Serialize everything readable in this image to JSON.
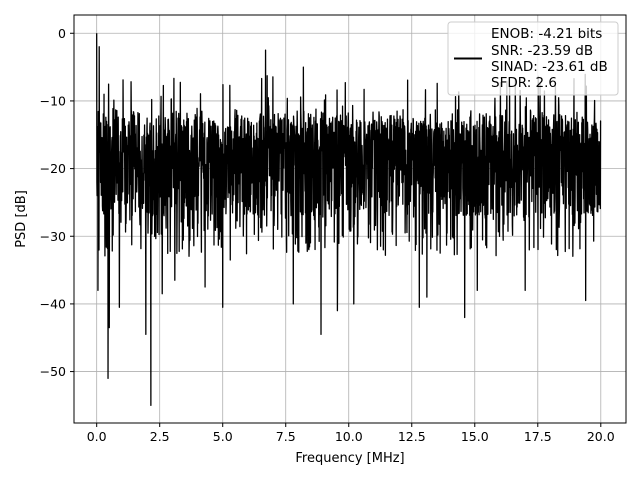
{
  "chart_data": {
    "type": "line",
    "title": "",
    "xlabel": "Frequency [MHz]",
    "ylabel": "PSD [dB]",
    "xlim": [
      -0.9,
      21.0
    ],
    "ylim": [
      -57.6,
      2.7
    ],
    "xticks": [
      0.0,
      2.5,
      5.0,
      7.5,
      10.0,
      12.5,
      15.0,
      17.5,
      20.0
    ],
    "xtick_labels": [
      "0.0",
      "2.5",
      "5.0",
      "7.5",
      "10.0",
      "12.5",
      "15.0",
      "17.5",
      "20.0"
    ],
    "yticks": [
      0,
      -10,
      -20,
      -30,
      -40,
      -50
    ],
    "ytick_labels": [
      "0",
      "−10",
      "−20",
      "−30",
      "−40",
      "−50"
    ],
    "grid": true,
    "legend_position": "top-right",
    "line_color": "#000000",
    "legend": {
      "lines": [
        "ENOB: -4.21 bits",
        "SNR: -23.59 dB",
        "SINAD: -23.61 dB",
        "SFDR: 2.6"
      ]
    },
    "series": [
      {
        "band": {
          "x_start": 0.0,
          "x_end": 20.0,
          "upper": -12,
          "lower": -27,
          "mid": -19
        },
        "features": [
          {
            "x": 0.0,
            "y": 0
          },
          {
            "x": 0.05,
            "y": -38
          },
          {
            "x": 0.1,
            "y": -2
          },
          {
            "x": 0.45,
            "y": -51
          },
          {
            "x": 0.5,
            "y": -43.5
          },
          {
            "x": 0.9,
            "y": -40.5
          },
          {
            "x": 1.95,
            "y": -44.5
          },
          {
            "x": 2.15,
            "y": -55
          },
          {
            "x": 2.6,
            "y": -38.5
          },
          {
            "x": 3.1,
            "y": -36.5
          },
          {
            "x": 4.3,
            "y": -37.5
          },
          {
            "x": 5.0,
            "y": -40.5
          },
          {
            "x": 5.3,
            "y": -33.5
          },
          {
            "x": 6.7,
            "y": -2.5
          },
          {
            "x": 7.8,
            "y": -40
          },
          {
            "x": 8.2,
            "y": -5
          },
          {
            "x": 8.9,
            "y": -44.5
          },
          {
            "x": 9.55,
            "y": -41
          },
          {
            "x": 10.2,
            "y": -40
          },
          {
            "x": 12.8,
            "y": -40.5
          },
          {
            "x": 13.1,
            "y": -39
          },
          {
            "x": 14.6,
            "y": -42
          },
          {
            "x": 15.1,
            "y": -38
          },
          {
            "x": 17.0,
            "y": -38
          },
          {
            "x": 19.4,
            "y": -39.5
          },
          {
            "x": 20.0,
            "y": -13
          }
        ]
      }
    ]
  }
}
